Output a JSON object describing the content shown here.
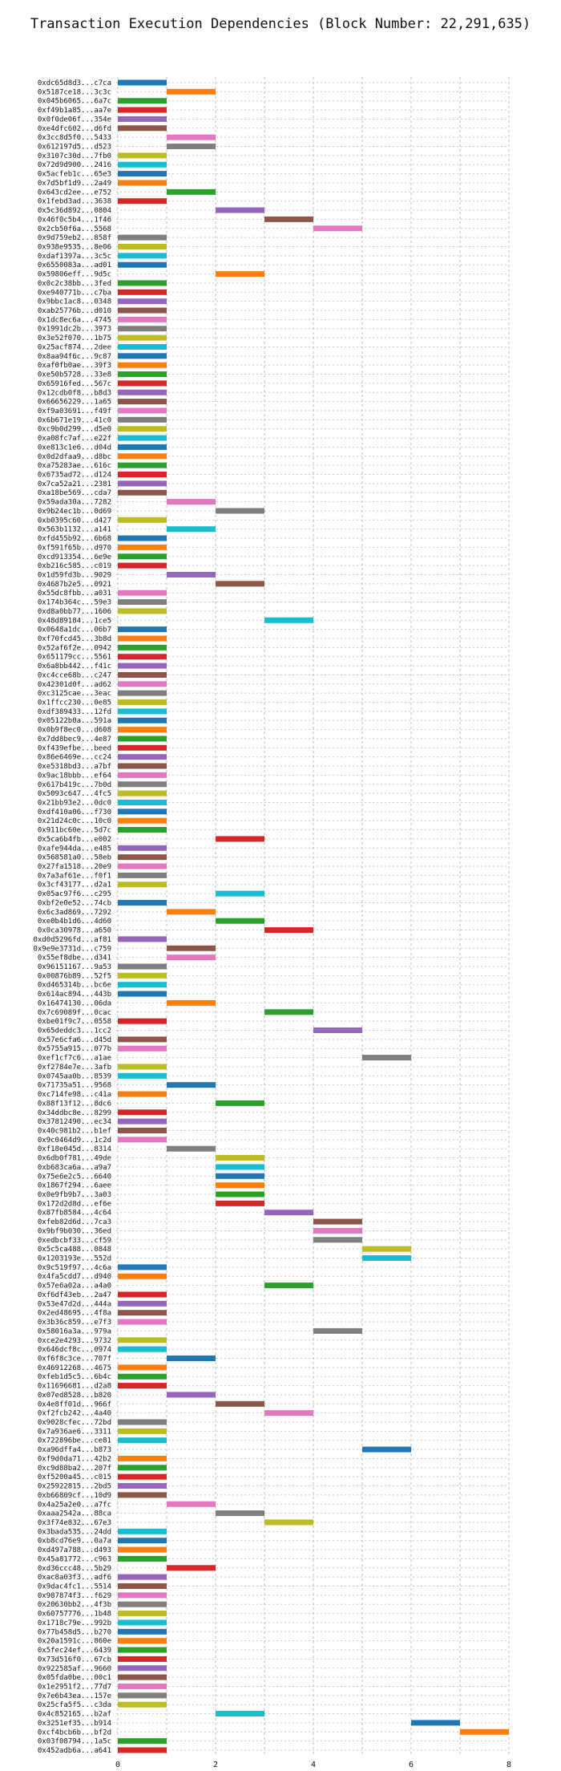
{
  "chart_data": {
    "type": "bar",
    "orientation": "horizontal-gantt",
    "title": "Transaction Execution Dependencies (Block Number: 22,291,635)",
    "xlabel": "",
    "ylabel": "",
    "xlim": [
      0,
      8
    ],
    "xticks": [
      0,
      2,
      4,
      6,
      8
    ],
    "grid": true,
    "colors": [
      "#1f77b4",
      "#ff7f0e",
      "#2ca02c",
      "#d62728",
      "#9467bd",
      "#8c564b",
      "#e377c2",
      "#7f7f7f",
      "#bcbd22",
      "#17becf"
    ],
    "transactions": [
      {
        "hash": "0xdc65d8d3...c7ca",
        "start": 0,
        "end": 1
      },
      {
        "hash": "0x5187ce18...3c3c",
        "start": 1,
        "end": 2
      },
      {
        "hash": "0x045b6065...6a7c",
        "start": 0,
        "end": 1
      },
      {
        "hash": "0xf49b1a85...aa7e",
        "start": 0,
        "end": 1
      },
      {
        "hash": "0x0f0de06f...354e",
        "start": 0,
        "end": 1
      },
      {
        "hash": "0xe4dfc602...d6fd",
        "start": 0,
        "end": 1
      },
      {
        "hash": "0x3cc8d5f0...5433",
        "start": 1,
        "end": 2
      },
      {
        "hash": "0x612197d5...d523",
        "start": 1,
        "end": 2
      },
      {
        "hash": "0x3107c30d...7fb0",
        "start": 0,
        "end": 1
      },
      {
        "hash": "0x72d9d900...2416",
        "start": 0,
        "end": 1
      },
      {
        "hash": "0x5acfeb1c...65e3",
        "start": 0,
        "end": 1
      },
      {
        "hash": "0x7d5bf1d9...2a49",
        "start": 0,
        "end": 1
      },
      {
        "hash": "0x643cd2ee...e752",
        "start": 1,
        "end": 2
      },
      {
        "hash": "0x1febd3ad...3638",
        "start": 0,
        "end": 1
      },
      {
        "hash": "0x5c36d892...0804",
        "start": 2,
        "end": 3
      },
      {
        "hash": "0x46f0c5b4...1f46",
        "start": 3,
        "end": 4
      },
      {
        "hash": "0x2cb50f6a...5568",
        "start": 4,
        "end": 5
      },
      {
        "hash": "0x9d759eb2...858f",
        "start": 0,
        "end": 1
      },
      {
        "hash": "0x938e9535...8e06",
        "start": 0,
        "end": 1
      },
      {
        "hash": "0xdaf1397a...3c5c",
        "start": 0,
        "end": 1
      },
      {
        "hash": "0x6550083a...ad01",
        "start": 0,
        "end": 1
      },
      {
        "hash": "0x59806eff...9d5c",
        "start": 2,
        "end": 3
      },
      {
        "hash": "0x0c2c38bb...3fed",
        "start": 0,
        "end": 1
      },
      {
        "hash": "0xe940771b...c7ba",
        "start": 0,
        "end": 1
      },
      {
        "hash": "0x9bbc1ac8...0348",
        "start": 0,
        "end": 1
      },
      {
        "hash": "0xab25776b...d010",
        "start": 0,
        "end": 1
      },
      {
        "hash": "0x1dc8ec6a...4745",
        "start": 0,
        "end": 1
      },
      {
        "hash": "0x1991dc2b...3973",
        "start": 0,
        "end": 1
      },
      {
        "hash": "0x3e52f070...1b75",
        "start": 0,
        "end": 1
      },
      {
        "hash": "0x25acf874...2dee",
        "start": 0,
        "end": 1
      },
      {
        "hash": "0x8aa94f6c...9c87",
        "start": 0,
        "end": 1
      },
      {
        "hash": "0xaf0fb0ae...39f3",
        "start": 0,
        "end": 1
      },
      {
        "hash": "0xe50b5728...33e8",
        "start": 0,
        "end": 1
      },
      {
        "hash": "0x65916fed...567c",
        "start": 0,
        "end": 1
      },
      {
        "hash": "0x12cdb0f8...b8d3",
        "start": 0,
        "end": 1
      },
      {
        "hash": "0x66656229...1a65",
        "start": 0,
        "end": 1
      },
      {
        "hash": "0xf9a03691...f49f",
        "start": 0,
        "end": 1
      },
      {
        "hash": "0x6b671e19...41c0",
        "start": 0,
        "end": 1
      },
      {
        "hash": "0xc9b0d299...d5e0",
        "start": 0,
        "end": 1
      },
      {
        "hash": "0xa08fc7af...e22f",
        "start": 0,
        "end": 1
      },
      {
        "hash": "0xe813c1e6...d04d",
        "start": 0,
        "end": 1
      },
      {
        "hash": "0x0d2dfaa9...d8bc",
        "start": 0,
        "end": 1
      },
      {
        "hash": "0xa75283ae...616c",
        "start": 0,
        "end": 1
      },
      {
        "hash": "0x6735ad72...d124",
        "start": 0,
        "end": 1
      },
      {
        "hash": "0x7ca52a21...2381",
        "start": 0,
        "end": 1
      },
      {
        "hash": "0xa18be569...cda7",
        "start": 0,
        "end": 1
      },
      {
        "hash": "0x59ada30a...7282",
        "start": 1,
        "end": 2
      },
      {
        "hash": "0x9b24ec1b...0d69",
        "start": 2,
        "end": 3
      },
      {
        "hash": "0xb0395c60...d427",
        "start": 0,
        "end": 1
      },
      {
        "hash": "0x563b1132...a141",
        "start": 1,
        "end": 2
      },
      {
        "hash": "0xfd455b92...6b68",
        "start": 0,
        "end": 1
      },
      {
        "hash": "0xf591f65b...d970",
        "start": 0,
        "end": 1
      },
      {
        "hash": "0xcd913354...6e9e",
        "start": 0,
        "end": 1
      },
      {
        "hash": "0xb216c585...c019",
        "start": 0,
        "end": 1
      },
      {
        "hash": "0x1d59fd3b...9029",
        "start": 1,
        "end": 2
      },
      {
        "hash": "0x4687b2e5...0921",
        "start": 2,
        "end": 3
      },
      {
        "hash": "0x55dc8fbb...a031",
        "start": 0,
        "end": 1
      },
      {
        "hash": "0x174b364c...59e3",
        "start": 0,
        "end": 1
      },
      {
        "hash": "0xd8a0bb77...1606",
        "start": 0,
        "end": 1
      },
      {
        "hash": "0x48d89184...1ce5",
        "start": 3,
        "end": 4
      },
      {
        "hash": "0x0648a1dc...06b7",
        "start": 0,
        "end": 1
      },
      {
        "hash": "0xf70fcd45...3b8d",
        "start": 0,
        "end": 1
      },
      {
        "hash": "0x52af6f2e...0942",
        "start": 0,
        "end": 1
      },
      {
        "hash": "0x651179cc...5561",
        "start": 0,
        "end": 1
      },
      {
        "hash": "0x6a8bb442...f41c",
        "start": 0,
        "end": 1
      },
      {
        "hash": "0xc4cce68b...c247",
        "start": 0,
        "end": 1
      },
      {
        "hash": "0x42301d0f...ad62",
        "start": 0,
        "end": 1
      },
      {
        "hash": "0xc3125cae...3eac",
        "start": 0,
        "end": 1
      },
      {
        "hash": "0x1ffcc230...0e85",
        "start": 0,
        "end": 1
      },
      {
        "hash": "0xdf389433...12fd",
        "start": 0,
        "end": 1
      },
      {
        "hash": "0x05122b0a...591a",
        "start": 0,
        "end": 1
      },
      {
        "hash": "0x0b9f8ec0...d608",
        "start": 0,
        "end": 1
      },
      {
        "hash": "0x7dd8bec9...4e87",
        "start": 0,
        "end": 1
      },
      {
        "hash": "0xf439efbe...beed",
        "start": 0,
        "end": 1
      },
      {
        "hash": "0x86e6469e...cc24",
        "start": 0,
        "end": 1
      },
      {
        "hash": "0xe5318bd3...a7bf",
        "start": 0,
        "end": 1
      },
      {
        "hash": "0x9ac18bbb...ef64",
        "start": 0,
        "end": 1
      },
      {
        "hash": "0x617b419c...7b0d",
        "start": 0,
        "end": 1
      },
      {
        "hash": "0x5093c647...4fc5",
        "start": 0,
        "end": 1
      },
      {
        "hash": "0x21bb93e2...0dc0",
        "start": 0,
        "end": 1
      },
      {
        "hash": "0xdf410a06...f730",
        "start": 0,
        "end": 1
      },
      {
        "hash": "0x21d24c0c...10c0",
        "start": 0,
        "end": 1
      },
      {
        "hash": "0x911bc60e...5d7c",
        "start": 0,
        "end": 1
      },
      {
        "hash": "0x5ca6b4fb...e002",
        "start": 2,
        "end": 3
      },
      {
        "hash": "0xafe944da...e485",
        "start": 0,
        "end": 1
      },
      {
        "hash": "0x568581a0...58eb",
        "start": 0,
        "end": 1
      },
      {
        "hash": "0x27fa1518...20e9",
        "start": 0,
        "end": 1
      },
      {
        "hash": "0x7a3af61e...f0f1",
        "start": 0,
        "end": 1
      },
      {
        "hash": "0x3cf43177...d2a1",
        "start": 0,
        "end": 1
      },
      {
        "hash": "0x05ac97f6...c295",
        "start": 2,
        "end": 3
      },
      {
        "hash": "0xbf2e0e52...74cb",
        "start": 0,
        "end": 1
      },
      {
        "hash": "0x6c3ad869...7292",
        "start": 1,
        "end": 2
      },
      {
        "hash": "0xe0b4b1d6...4d60",
        "start": 2,
        "end": 3
      },
      {
        "hash": "0x0ca30978...a650",
        "start": 3,
        "end": 4
      },
      {
        "hash": "0xd0d5296fd...af81",
        "start": 0,
        "end": 1
      },
      {
        "hash": "0x9e9e3731d...c759",
        "start": 1,
        "end": 2
      },
      {
        "hash": "0x55ef8dbe...d341",
        "start": 1,
        "end": 2
      },
      {
        "hash": "0x96151167...9a53",
        "start": 0,
        "end": 1
      },
      {
        "hash": "0x00876b89...52f5",
        "start": 0,
        "end": 1
      },
      {
        "hash": "0xd465314b...bc6e",
        "start": 0,
        "end": 1
      },
      {
        "hash": "0x614ac894...443b",
        "start": 0,
        "end": 1
      },
      {
        "hash": "0x16474130...06da",
        "start": 1,
        "end": 2
      },
      {
        "hash": "0x7c69089f...0cac",
        "start": 3,
        "end": 4
      },
      {
        "hash": "0xbe01f9c7...0558",
        "start": 0,
        "end": 1
      },
      {
        "hash": "0x65deddc3...1cc2",
        "start": 4,
        "end": 5
      },
      {
        "hash": "0x57e6cfa6...d45d",
        "start": 0,
        "end": 1
      },
      {
        "hash": "0x5755a915...077b",
        "start": 0,
        "end": 1
      },
      {
        "hash": "0xef1cf7c6...a1ae",
        "start": 5,
        "end": 6
      },
      {
        "hash": "0xf2784e7e...3afb",
        "start": 0,
        "end": 1
      },
      {
        "hash": "0x0745aa0b...8539",
        "start": 0,
        "end": 1
      },
      {
        "hash": "0x71735a51...9568",
        "start": 1,
        "end": 2
      },
      {
        "hash": "0xc714fe98...c41a",
        "start": 0,
        "end": 1
      },
      {
        "hash": "0x88f13f12...8dc6",
        "start": 2,
        "end": 3
      },
      {
        "hash": "0x34ddbc8e...8299",
        "start": 0,
        "end": 1
      },
      {
        "hash": "0x37812490...ec34",
        "start": 0,
        "end": 1
      },
      {
        "hash": "0x40c981b2...b1ef",
        "start": 0,
        "end": 1
      },
      {
        "hash": "0x9c0464d9...1c2d",
        "start": 0,
        "end": 1
      },
      {
        "hash": "0xf18e045d...8314",
        "start": 1,
        "end": 2
      },
      {
        "hash": "0x6db0f781...49de",
        "start": 2,
        "end": 3
      },
      {
        "hash": "0xb683ca6a...a9a7",
        "start": 2,
        "end": 3
      },
      {
        "hash": "0x75e6e2c5...6640",
        "start": 2,
        "end": 3
      },
      {
        "hash": "0x1867f294...6aee",
        "start": 2,
        "end": 3
      },
      {
        "hash": "0x0e9fb9b7...3a03",
        "start": 2,
        "end": 3
      },
      {
        "hash": "0x172d2d8d...ef6e",
        "start": 2,
        "end": 3
      },
      {
        "hash": "0x87fb8584...4c64",
        "start": 3,
        "end": 4
      },
      {
        "hash": "0xfeb82d6d...7ca3",
        "start": 4,
        "end": 5
      },
      {
        "hash": "0x9bf9b030...36ed",
        "start": 4,
        "end": 5
      },
      {
        "hash": "0xedbcbf33...cf59",
        "start": 4,
        "end": 5
      },
      {
        "hash": "0x5c5ca488...0848",
        "start": 5,
        "end": 6
      },
      {
        "hash": "0x1203193e...552d",
        "start": 5,
        "end": 6
      },
      {
        "hash": "0x9c519f97...4c6a",
        "start": 0,
        "end": 1
      },
      {
        "hash": "0x4fa5cdd7...d940",
        "start": 0,
        "end": 1
      },
      {
        "hash": "0x57e6a02a...a4a0",
        "start": 3,
        "end": 4
      },
      {
        "hash": "0xf6df43eb...2a47",
        "start": 0,
        "end": 1
      },
      {
        "hash": "0x53e47d2d...444a",
        "start": 0,
        "end": 1
      },
      {
        "hash": "0x2ed48695...4f8a",
        "start": 0,
        "end": 1
      },
      {
        "hash": "0x3b36c859...e7f3",
        "start": 0,
        "end": 1
      },
      {
        "hash": "0x58016a3a...979a",
        "start": 4,
        "end": 5
      },
      {
        "hash": "0xce2e4293...9732",
        "start": 0,
        "end": 1
      },
      {
        "hash": "0x646dcf8c...0974",
        "start": 0,
        "end": 1
      },
      {
        "hash": "0xf6f8c3ce...707f",
        "start": 1,
        "end": 2
      },
      {
        "hash": "0x46912268...4675",
        "start": 0,
        "end": 1
      },
      {
        "hash": "0xfeb1d5c5...6b4c",
        "start": 0,
        "end": 1
      },
      {
        "hash": "0x11696681...d2a8",
        "start": 0,
        "end": 1
      },
      {
        "hash": "0x07ed8528...b820",
        "start": 1,
        "end": 2
      },
      {
        "hash": "0x4e8ff01d...966f",
        "start": 2,
        "end": 3
      },
      {
        "hash": "0xf2fcb242...4a40",
        "start": 3,
        "end": 4
      },
      {
        "hash": "0x9028cfec...72bd",
        "start": 0,
        "end": 1
      },
      {
        "hash": "0x7a936ae6...3311",
        "start": 0,
        "end": 1
      },
      {
        "hash": "0x722896be...ce81",
        "start": 0,
        "end": 1
      },
      {
        "hash": "0xa96dffa4...b873",
        "start": 5,
        "end": 6
      },
      {
        "hash": "0xf9d0da71...42b2",
        "start": 0,
        "end": 1
      },
      {
        "hash": "0xc9d88ba2...207f",
        "start": 0,
        "end": 1
      },
      {
        "hash": "0xf5200a45...c015",
        "start": 0,
        "end": 1
      },
      {
        "hash": "0x25922815...2bd5",
        "start": 0,
        "end": 1
      },
      {
        "hash": "0xb66809cf...10d9",
        "start": 0,
        "end": 1
      },
      {
        "hash": "0x4a25a2e0...a7fc",
        "start": 1,
        "end": 2
      },
      {
        "hash": "0xaaa2542a...88ca",
        "start": 2,
        "end": 3
      },
      {
        "hash": "0x3f74e832...67e3",
        "start": 3,
        "end": 4
      },
      {
        "hash": "0x3bada535...24dd",
        "start": 0,
        "end": 1
      },
      {
        "hash": "0xb8cd76e9...0a7a",
        "start": 0,
        "end": 1
      },
      {
        "hash": "0xd497a788...d493",
        "start": 0,
        "end": 1
      },
      {
        "hash": "0x45a81772...c963",
        "start": 0,
        "end": 1
      },
      {
        "hash": "0xd36ccc48...5b29",
        "start": 1,
        "end": 2
      },
      {
        "hash": "0xac8a03f3...adf6",
        "start": 0,
        "end": 1
      },
      {
        "hash": "0x9dac4fc1...5514",
        "start": 0,
        "end": 1
      },
      {
        "hash": "0x987874f3...f629",
        "start": 0,
        "end": 1
      },
      {
        "hash": "0x20630bb2...4f3b",
        "start": 0,
        "end": 1
      },
      {
        "hash": "0x60757776...1b48",
        "start": 0,
        "end": 1
      },
      {
        "hash": "0x1718c79e...992b",
        "start": 0,
        "end": 1
      },
      {
        "hash": "0x77b458d5...b270",
        "start": 0,
        "end": 1
      },
      {
        "hash": "0x20a1591c...860e",
        "start": 0,
        "end": 1
      },
      {
        "hash": "0x5fec24ef...6439",
        "start": 0,
        "end": 1
      },
      {
        "hash": "0x73d516f0...67cb",
        "start": 0,
        "end": 1
      },
      {
        "hash": "0x922585af...9660",
        "start": 0,
        "end": 1
      },
      {
        "hash": "0x05fda0be...00c1",
        "start": 0,
        "end": 1
      },
      {
        "hash": "0x1e2951f2...77d7",
        "start": 0,
        "end": 1
      },
      {
        "hash": "0x7e6b43ea...157e",
        "start": 0,
        "end": 1
      },
      {
        "hash": "0x25cfa5f5...c3da",
        "start": 0,
        "end": 1
      },
      {
        "hash": "0x4c852165...b2af",
        "start": 2,
        "end": 3
      },
      {
        "hash": "0x3251ef35...b914",
        "start": 6,
        "end": 7
      },
      {
        "hash": "0xcf4bcb6b...bf2d",
        "start": 7,
        "end": 8
      },
      {
        "hash": "0x03f08794...1a5c",
        "start": 0,
        "end": 1
      },
      {
        "hash": "0x452adb6a...a641",
        "start": 0,
        "end": 1
      }
    ]
  }
}
